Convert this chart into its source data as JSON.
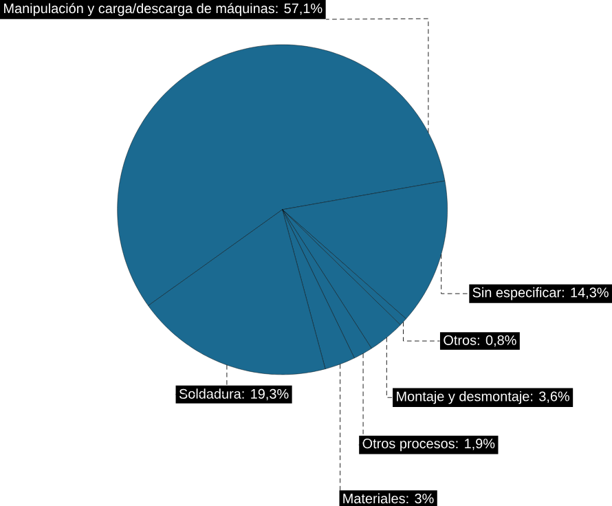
{
  "chart_data": {
    "type": "pie",
    "categories": [
      "Manipulación y carga/descarga de máquinas: 57,1%",
      "Sin especificar: 14,3%",
      "Otros: 0,8%",
      "Montaje y desmontaje: 3,6%",
      "Otros procesos: 1,9%",
      "Materiales: 3%",
      "Soldadura: 19,3%"
    ],
    "values": [
      57.1,
      14.3,
      0.8,
      3.6,
      1.9,
      3,
      19.3
    ],
    "colors": [
      "#1b6a91",
      "#1b6a91",
      "#1b6a91",
      "#1b6a91",
      "#1b6a91",
      "#1b6a91",
      "#1b6a91"
    ]
  }
}
